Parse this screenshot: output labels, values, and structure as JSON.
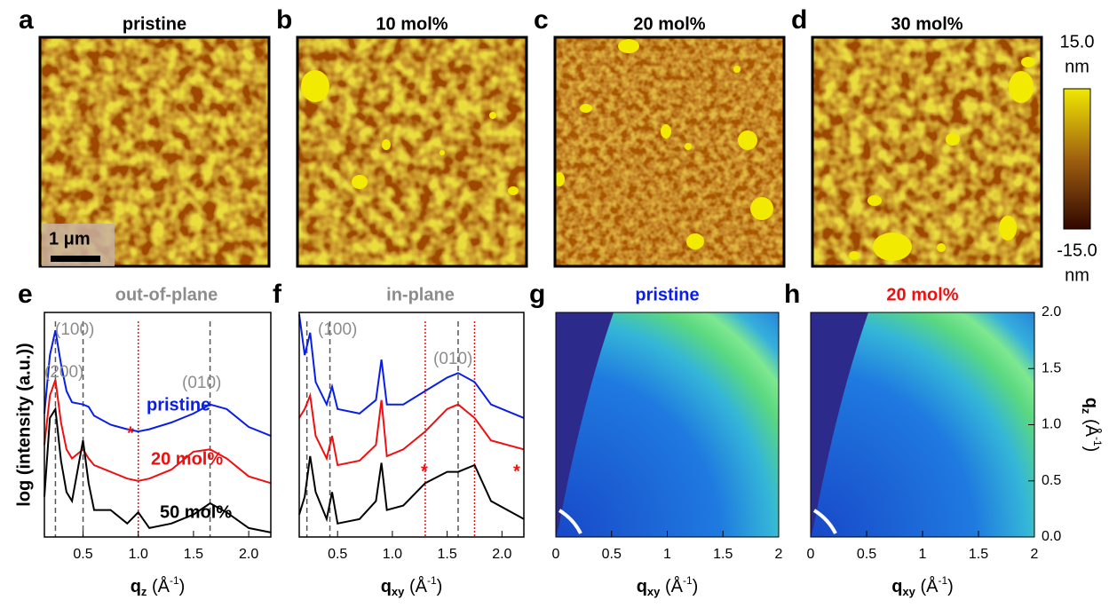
{
  "afm_panels": [
    {
      "letter": "a",
      "title": "pristine"
    },
    {
      "letter": "b",
      "title": "10 mol%"
    },
    {
      "letter": "c",
      "title": "20 mol%"
    },
    {
      "letter": "d",
      "title": "30 mol%"
    }
  ],
  "scale_bar": "1 μm",
  "colorbar": {
    "max": "15.0",
    "min": "-15.0",
    "unit": "nm"
  },
  "chart_data": [
    {
      "type": "line",
      "letter": "e",
      "title": "out-of-plane",
      "y_label": "log (intensity (a.u.))",
      "x_label": [
        "q",
        "z",
        " (Å",
        "-1",
        ")"
      ],
      "xlim": [
        0.15,
        2.2
      ],
      "ylim": [
        0,
        10
      ],
      "xticks": [
        0.5,
        {
          "value": 1,
          "label": "1.0"
        },
        1.5,
        {
          "value": 2,
          "label": "2.0"
        }
      ],
      "x": [
        0.15,
        0.2,
        0.25,
        0.3,
        0.35,
        0.4,
        0.5,
        0.55,
        0.6,
        0.75,
        0.9,
        1.0,
        1.1,
        1.3,
        1.5,
        1.65,
        1.8,
        2.0,
        2.2
      ],
      "series": [
        {
          "name": "pristine",
          "color": "#0a1ee6",
          "values": [
            5.5,
            8.1,
            9.2,
            7.7,
            6.5,
            6.0,
            5.9,
            5.8,
            5.4,
            5.0,
            4.8,
            4.7,
            4.8,
            5.1,
            5.5,
            5.9,
            5.7,
            4.9,
            4.5
          ]
        },
        {
          "name": "20 mol%",
          "color": "#ee1010",
          "values": [
            4.1,
            6.3,
            7.0,
            5.1,
            3.9,
            3.5,
            3.9,
            3.5,
            3.2,
            2.9,
            2.6,
            2.5,
            2.6,
            3.0,
            3.8,
            3.9,
            3.5,
            2.7,
            2.4
          ]
        },
        {
          "name": "50 mol%",
          "color": "#000000",
          "values": [
            1.8,
            5.3,
            5.7,
            3.4,
            2.0,
            1.6,
            4.3,
            2.4,
            1.2,
            1.2,
            0.6,
            1.1,
            0.4,
            0.6,
            1.0,
            1.5,
            1.1,
            0.4,
            0.2
          ]
        }
      ],
      "ref_lines": [
        {
          "x": 0.25,
          "color": "#555555"
        },
        {
          "x": 0.5,
          "color": "#555555"
        },
        {
          "x": 1.65,
          "color": "#555555"
        },
        {
          "x": 1.0,
          "color": "#ee1010"
        }
      ],
      "annotations": [
        "(100)",
        "(200)",
        "(010)",
        "*"
      ]
    },
    {
      "type": "line",
      "letter": "f",
      "title": "in-plane",
      "x_label": [
        "q",
        "xy",
        " (Å",
        "-1",
        ")"
      ],
      "xlim": [
        0.15,
        2.2
      ],
      "ylim": [
        0,
        10
      ],
      "xticks": [
        0.5,
        {
          "value": 1,
          "label": "1.0"
        },
        1.5,
        {
          "value": 2,
          "label": "2.0"
        }
      ],
      "x": [
        0.15,
        0.2,
        0.25,
        0.3,
        0.4,
        0.45,
        0.5,
        0.7,
        0.85,
        0.9,
        0.95,
        1.1,
        1.3,
        1.5,
        1.6,
        1.75,
        1.9,
        2.2
      ],
      "series": [
        {
          "color": "#0a1ee6",
          "values": [
            9.9,
            8.1,
            9.1,
            6.9,
            5.9,
            6.7,
            5.7,
            5.5,
            6.1,
            7.9,
            5.9,
            5.9,
            6.5,
            7.1,
            7.3,
            6.9,
            5.9,
            5.3
          ]
        },
        {
          "color": "#ee1010",
          "values": [
            5.3,
            5.7,
            6.3,
            4.5,
            3.5,
            4.5,
            3.2,
            3.4,
            4.1,
            6.1,
            3.6,
            3.9,
            4.7,
            5.7,
            5.9,
            5.3,
            4.3,
            3.9
          ]
        },
        {
          "color": "#000000",
          "values": [
            1.0,
            1.8,
            3.6,
            2.0,
            0.8,
            2.0,
            0.6,
            0.8,
            1.6,
            3.3,
            1.2,
            1.4,
            2.4,
            2.9,
            2.9,
            3.2,
            1.6,
            0.8
          ]
        }
      ],
      "ref_lines": [
        {
          "x": 0.22,
          "color": "#555555"
        },
        {
          "x": 0.43,
          "color": "#555555"
        },
        {
          "x": 1.6,
          "color": "#555555"
        },
        {
          "x": 1.3,
          "color": "#ee1010"
        },
        {
          "x": 1.75,
          "color": "#ee1010"
        }
      ],
      "annotations": [
        "(100)",
        "(010)",
        "*",
        "*"
      ]
    },
    {
      "type": "heatmap",
      "letter": "g",
      "title": "pristine",
      "title_color": "#0a1ee6",
      "x_label": [
        "q",
        "xy",
        " (Å",
        "-1",
        ")"
      ],
      "xlim": [
        0,
        2
      ],
      "xticks": [
        0,
        0.5,
        1,
        1.5,
        2
      ]
    },
    {
      "type": "heatmap",
      "letter": "h",
      "title": "20 mol%",
      "title_color": "#ee1010",
      "x_label": [
        "q",
        "xy",
        " (Å",
        "-1",
        ")"
      ],
      "xlim": [
        0,
        2
      ],
      "xticks": [
        0,
        0.5,
        1,
        1.5,
        2
      ],
      "y2_label": [
        "q",
        "z",
        " (Å",
        "-1",
        ")"
      ],
      "y2lim": [
        0,
        2
      ],
      "y2ticks": [
        {
          "value": 0,
          "label": "0.0"
        },
        0.5,
        {
          "value": 1,
          "label": "1.0"
        },
        1.5,
        {
          "value": 2,
          "label": "2.0"
        }
      ]
    }
  ]
}
